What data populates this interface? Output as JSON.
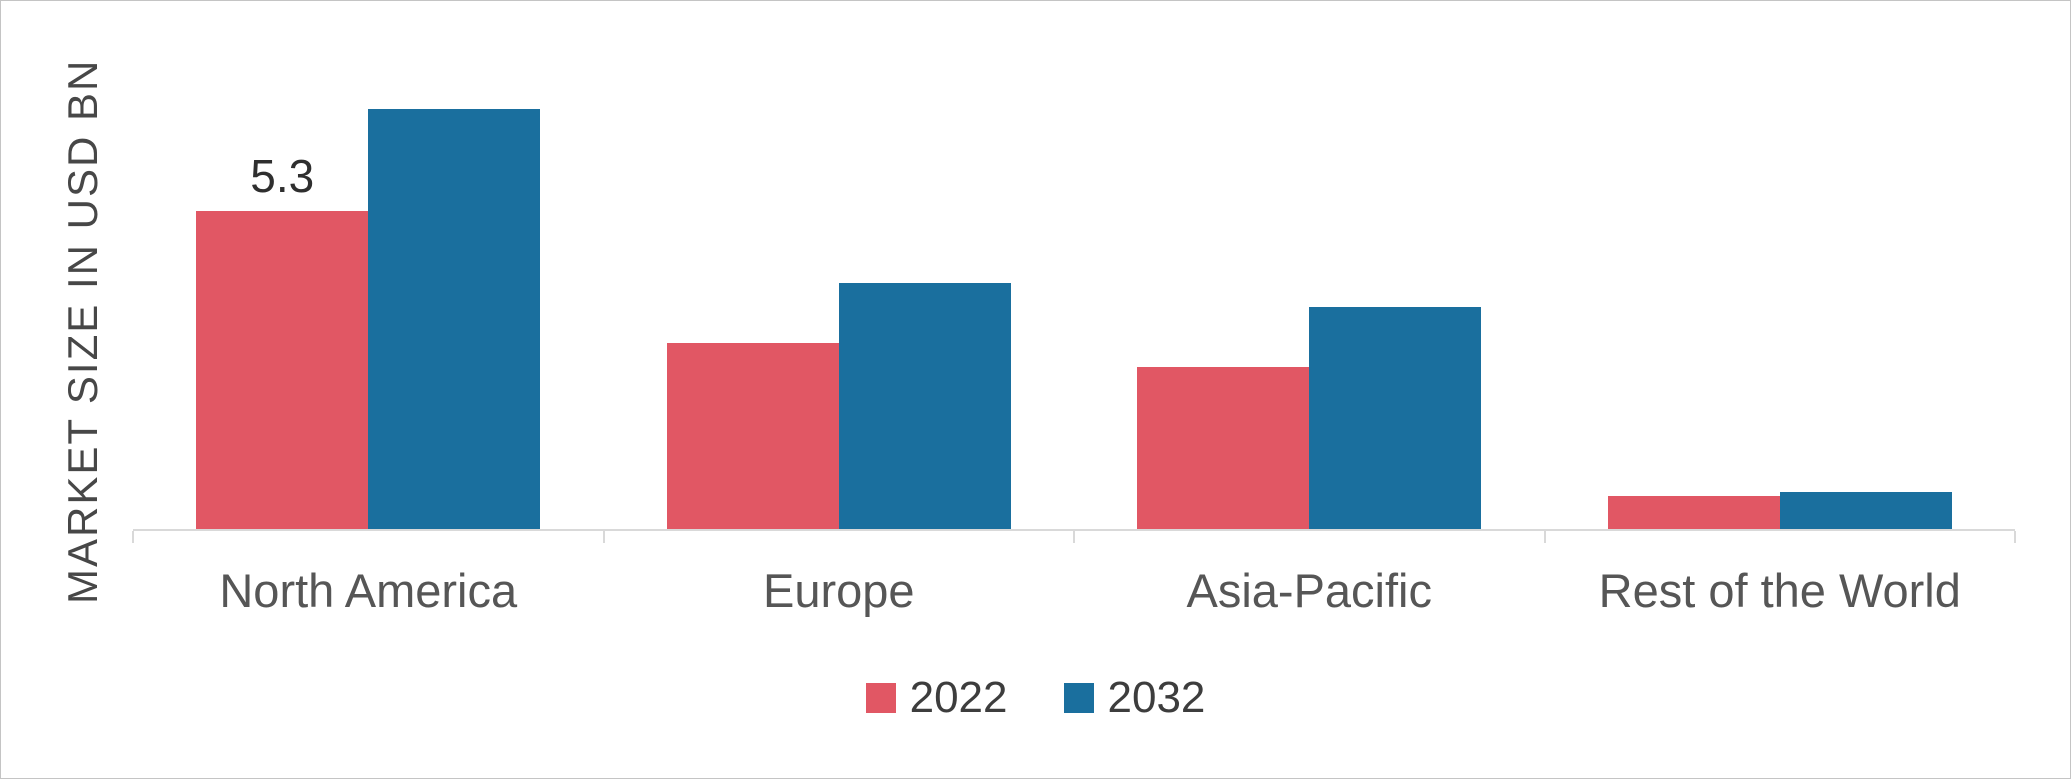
{
  "chart_data": {
    "type": "bar",
    "categories": [
      "North America",
      "Europe",
      "Asia-Pacific",
      "Rest of the World"
    ],
    "series": [
      {
        "name": "2022",
        "color": "#e15764",
        "values": [
          5.3,
          3.1,
          2.7,
          0.55
        ]
      },
      {
        "name": "2032",
        "color": "#1a6f9e",
        "values": [
          7.0,
          4.1,
          3.7,
          0.62
        ]
      }
    ],
    "title": "",
    "xlabel": "",
    "ylabel": "MARKET SIZE IN USD BN",
    "ylim": [
      0,
      8.8
    ],
    "grid": false,
    "legend_position": "bottom",
    "y_axis_ticks_visible": false,
    "data_labels": [
      {
        "series_index": 0,
        "category_index": 0,
        "text": "5.3"
      }
    ]
  },
  "legend": {
    "items": [
      {
        "label": "2022",
        "color": "#e15764"
      },
      {
        "label": "2032",
        "color": "#1a6f9e"
      }
    ]
  },
  "axis": {
    "line_color": "#d9d9d9",
    "tick_fractions": [
      0,
      25,
      50,
      75,
      100
    ]
  }
}
